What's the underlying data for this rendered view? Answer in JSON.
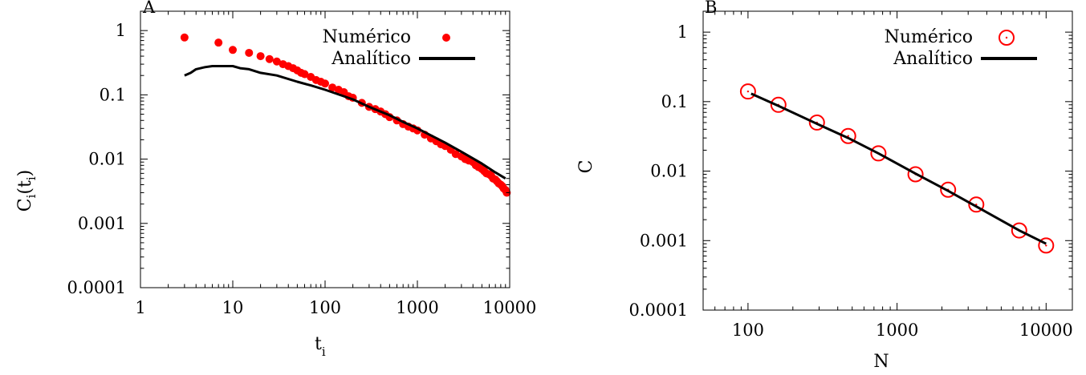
{
  "colors": {
    "numeric": "#ff0000",
    "analytic": "#000000",
    "axis": "#000000",
    "background": "#ffffff"
  },
  "chart_data": [
    {
      "type": "scatter",
      "panel_label": "A",
      "xlabel_main": "t",
      "xlabel_sub": "i",
      "ylabel_pre": "C",
      "ylabel_sub1": "i",
      "ylabel_mid": "(t",
      "ylabel_sub2": "i",
      "ylabel_post": ")",
      "x_scale": "log",
      "y_scale": "log",
      "xlim": [
        1,
        10000
      ],
      "ylim": [
        0.0001,
        2
      ],
      "x_ticks": [
        1,
        10,
        100,
        1000,
        10000
      ],
      "x_tick_labels": [
        "1",
        "10",
        "100",
        "1000",
        "10000"
      ],
      "y_ticks": [
        0.0001,
        0.001,
        0.01,
        0.1,
        1
      ],
      "y_tick_labels": [
        "0.0001",
        "0.001",
        "0.01",
        "0.1",
        "1"
      ],
      "grid": false,
      "legend_position": "top-right",
      "series": [
        {
          "name": "Numérico",
          "style": "filled-dots",
          "x": [
            3,
            7,
            10,
            15,
            20,
            25,
            30,
            35,
            40,
            45,
            50,
            55,
            60,
            70,
            80,
            90,
            100,
            120,
            140,
            160,
            180,
            200,
            250,
            300,
            350,
            400,
            450,
            500,
            600,
            700,
            800,
            900,
            1000,
            1200,
            1400,
            1600,
            1800,
            2000,
            2300,
            2600,
            3000,
            3300,
            3600,
            4000,
            4300,
            4600,
            5000,
            5300,
            5600,
            6000,
            6300,
            6600,
            7000,
            7300,
            7600,
            8000,
            8300,
            8600,
            9000,
            9300
          ],
          "y": [
            0.78,
            0.65,
            0.5,
            0.45,
            0.4,
            0.36,
            0.33,
            0.3,
            0.28,
            0.26,
            0.24,
            0.22,
            0.21,
            0.19,
            0.17,
            0.16,
            0.15,
            0.13,
            0.12,
            0.11,
            0.095,
            0.09,
            0.075,
            0.065,
            0.06,
            0.055,
            0.05,
            0.045,
            0.04,
            0.035,
            0.032,
            0.03,
            0.028,
            0.024,
            0.021,
            0.019,
            0.017,
            0.016,
            0.014,
            0.012,
            0.011,
            0.01,
            0.0095,
            0.009,
            0.008,
            0.0075,
            0.007,
            0.0065,
            0.006,
            0.0058,
            0.0055,
            0.005,
            0.0048,
            0.0045,
            0.0042,
            0.004,
            0.0038,
            0.0035,
            0.0033,
            0.003
          ]
        },
        {
          "name": "Analítico",
          "style": "line",
          "x": [
            3,
            3.5,
            4,
            5,
            6,
            7,
            8,
            9,
            10,
            12,
            15,
            20,
            30,
            50,
            70,
            100,
            200,
            300,
            500,
            700,
            1000,
            2000,
            3000,
            5000,
            7000,
            9000
          ],
          "y": [
            0.2,
            0.22,
            0.25,
            0.27,
            0.28,
            0.28,
            0.28,
            0.28,
            0.28,
            0.26,
            0.25,
            0.22,
            0.2,
            0.16,
            0.14,
            0.12,
            0.085,
            0.065,
            0.048,
            0.038,
            0.03,
            0.018,
            0.013,
            0.0085,
            0.0062,
            0.005
          ]
        }
      ]
    },
    {
      "type": "scatter",
      "panel_label": "B",
      "xlabel_main": "N",
      "ylabel_pre": "C",
      "x_scale": "log",
      "y_scale": "log",
      "xlim": [
        50,
        15000
      ],
      "ylim": [
        0.0001,
        2
      ],
      "x_ticks": [
        100,
        1000,
        10000
      ],
      "x_tick_labels": [
        "100",
        "1000",
        "10000"
      ],
      "y_ticks": [
        0.0001,
        0.001,
        0.01,
        0.1,
        1
      ],
      "y_tick_labels": [
        "0.0001",
        "0.001",
        "0.01",
        "0.1",
        "1"
      ],
      "grid": false,
      "legend_position": "top-right",
      "series": [
        {
          "name": "Numérico",
          "style": "open-circles-dot",
          "x": [
            100,
            160,
            290,
            470,
            750,
            1330,
            2200,
            3400,
            6600,
            10000
          ],
          "y": [
            0.14,
            0.09,
            0.05,
            0.032,
            0.018,
            0.009,
            0.0054,
            0.0033,
            0.0014,
            0.00085
          ]
        },
        {
          "name": "Analítico",
          "style": "line",
          "x": [
            105,
            160,
            290,
            470,
            750,
            1330,
            2200,
            3400,
            6600,
            10000
          ],
          "y": [
            0.13,
            0.087,
            0.048,
            0.03,
            0.018,
            0.0092,
            0.0052,
            0.0031,
            0.0014,
            0.0009
          ]
        }
      ]
    }
  ]
}
